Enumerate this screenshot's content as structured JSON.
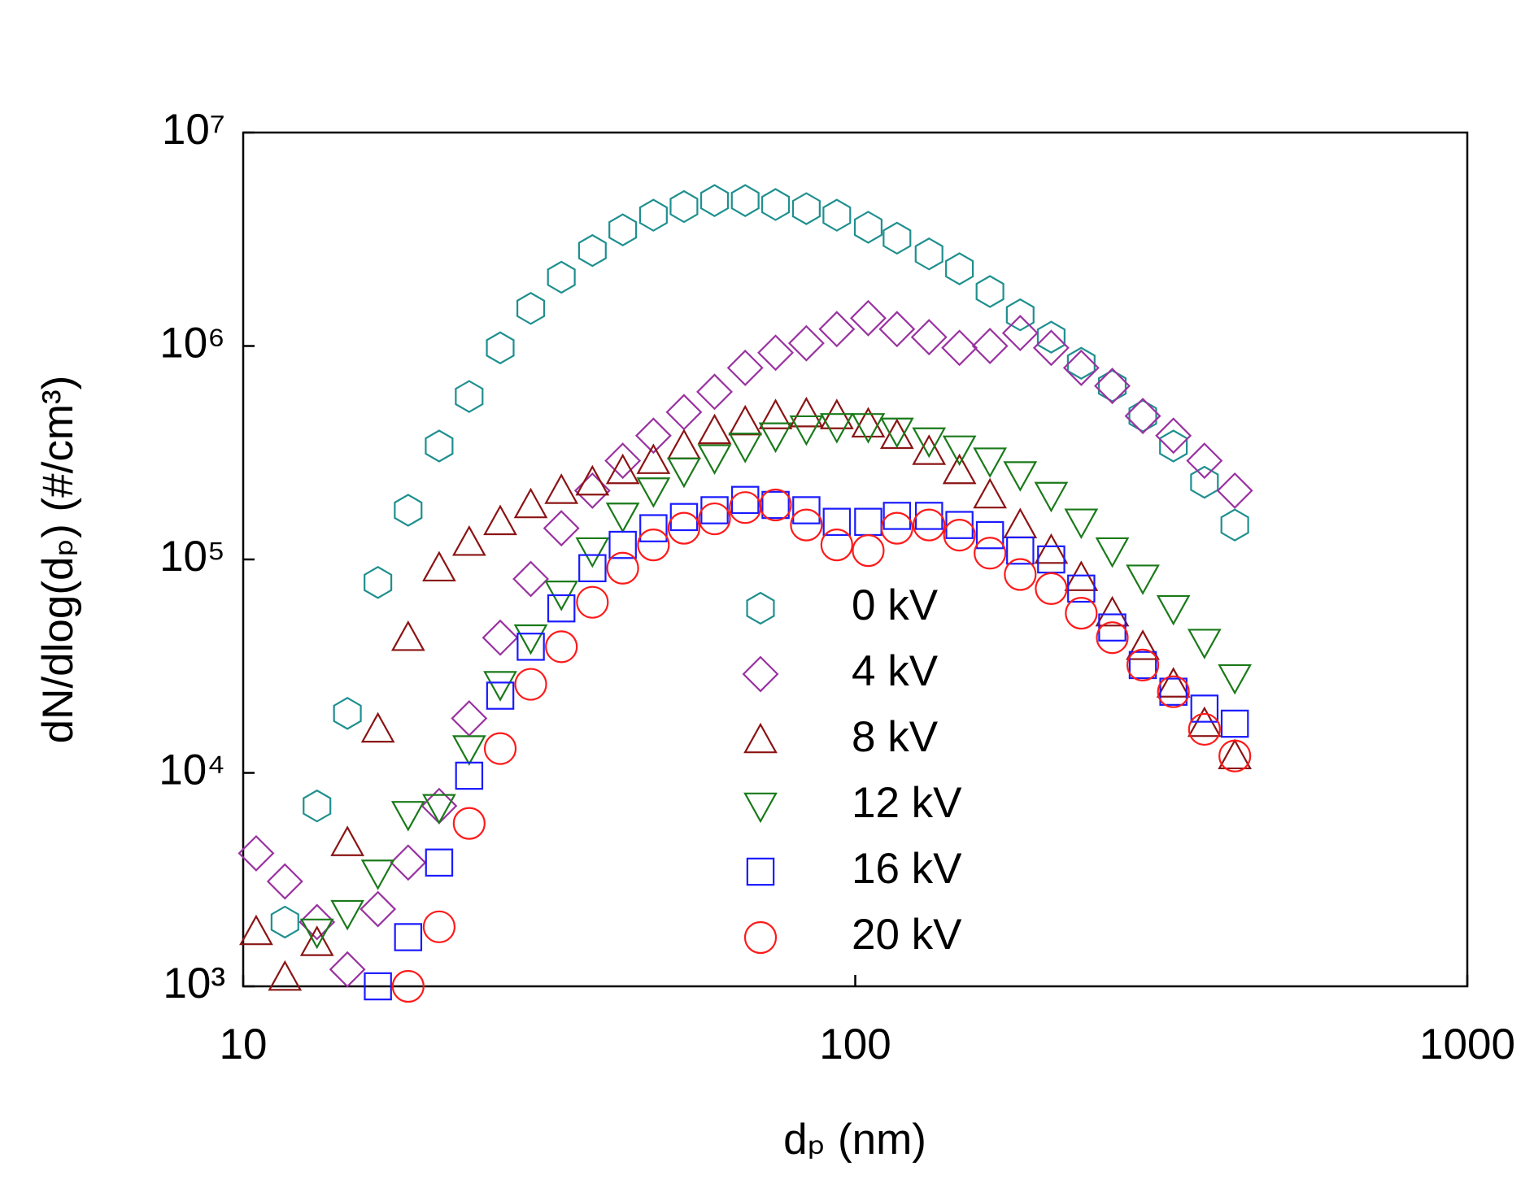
{
  "chart_data": {
    "type": "scatter",
    "xlabel": "dₚ (nm)",
    "ylabel": "dN/dlog(dₚ) (#/cm³)",
    "xscale": "log",
    "yscale": "log",
    "xlim": [
      10,
      1000
    ],
    "ylim": [
      1000,
      10000000
    ],
    "xticks": [
      10,
      100,
      1000
    ],
    "yticks": [
      {
        "value": 1000,
        "label": "10³"
      },
      {
        "value": 10000,
        "label": "10⁴"
      },
      {
        "value": 100000,
        "label": "10⁵"
      },
      {
        "value": 1000000,
        "label": "10⁶"
      },
      {
        "value": 10000000,
        "label": "10⁷"
      }
    ],
    "legend": "center",
    "x": [
      10.5,
      11.7,
      13.2,
      14.8,
      16.6,
      18.6,
      20.9,
      23.4,
      26.3,
      29.5,
      33.1,
      37.2,
      41.7,
      46.8,
      52.5,
      58.9,
      66.1,
      74.1,
      83.2,
      93.3,
      105,
      117,
      132,
      148,
      166,
      186,
      209,
      234,
      263,
      295,
      331,
      372,
      417
    ],
    "series": [
      {
        "name": "0 kV",
        "color": "#1f8f8f",
        "marker": "hexagon",
        "values": [
          null,
          2000,
          7000,
          19000,
          78000,
          170000,
          340000,
          580000,
          980000,
          1500000,
          2100000,
          2800000,
          3500000,
          4100000,
          4500000,
          4800000,
          4800000,
          4600000,
          4400000,
          4100000,
          3600000,
          3200000,
          2700000,
          2300000,
          1800000,
          1400000,
          1100000,
          830000,
          650000,
          470000,
          340000,
          230000,
          145000
        ]
      },
      {
        "name": "4 kV",
        "color": "#9932a0",
        "marker": "diamond",
        "values": [
          4200,
          3100,
          2000,
          1200,
          2300,
          3800,
          7000,
          18000,
          43000,
          81000,
          140000,
          210000,
          290000,
          380000,
          490000,
          610000,
          790000,
          930000,
          1030000,
          1200000,
          1350000,
          1200000,
          1100000,
          980000,
          1000000,
          1150000,
          980000,
          790000,
          650000,
          470000,
          380000,
          290000,
          210000
        ]
      },
      {
        "name": "8 kV",
        "color": "#8b1414",
        "marker": "triangle-up",
        "values": [
          1800,
          1100,
          1600,
          4700,
          16000,
          43000,
          91000,
          120000,
          150000,
          180000,
          210000,
          230000,
          260000,
          290000,
          340000,
          400000,
          440000,
          470000,
          480000,
          470000,
          430000,
          380000,
          320000,
          260000,
          200000,
          145000,
          110000,
          82000,
          56000,
          39000,
          26000,
          17000,
          12000
        ]
      },
      {
        "name": "12 kV",
        "color": "#1a7a1a",
        "marker": "triangle-down",
        "values": [
          null,
          null,
          1800,
          2200,
          3400,
          6400,
          6900,
          13000,
          26000,
          43000,
          69000,
          110000,
          160000,
          210000,
          260000,
          300000,
          340000,
          380000,
          410000,
          420000,
          420000,
          400000,
          360000,
          330000,
          290000,
          250000,
          200000,
          150000,
          110000,
          82000,
          59000,
          41000,
          28000
        ]
      },
      {
        "name": "16 kV",
        "color": "#1a1aff",
        "marker": "square",
        "values": [
          null,
          null,
          null,
          null,
          1000,
          1700,
          3800,
          9700,
          23000,
          39000,
          59000,
          91000,
          117000,
          140000,
          158000,
          170000,
          190000,
          180000,
          170000,
          150000,
          150000,
          160000,
          160000,
          145000,
          130000,
          110000,
          100000,
          73000,
          48000,
          32000,
          24000,
          20000,
          17000
        ]
      },
      {
        "name": "20 kV",
        "color": "#ff1a1a",
        "marker": "circle",
        "values": [
          null,
          null,
          null,
          null,
          null,
          1000,
          1900,
          5800,
          13000,
          26000,
          39000,
          63000,
          91000,
          117000,
          140000,
          155000,
          175000,
          180000,
          145000,
          117000,
          110000,
          140000,
          145000,
          130000,
          107000,
          85000,
          73000,
          56000,
          43000,
          32000,
          24000,
          16000,
          12000
        ]
      }
    ]
  }
}
